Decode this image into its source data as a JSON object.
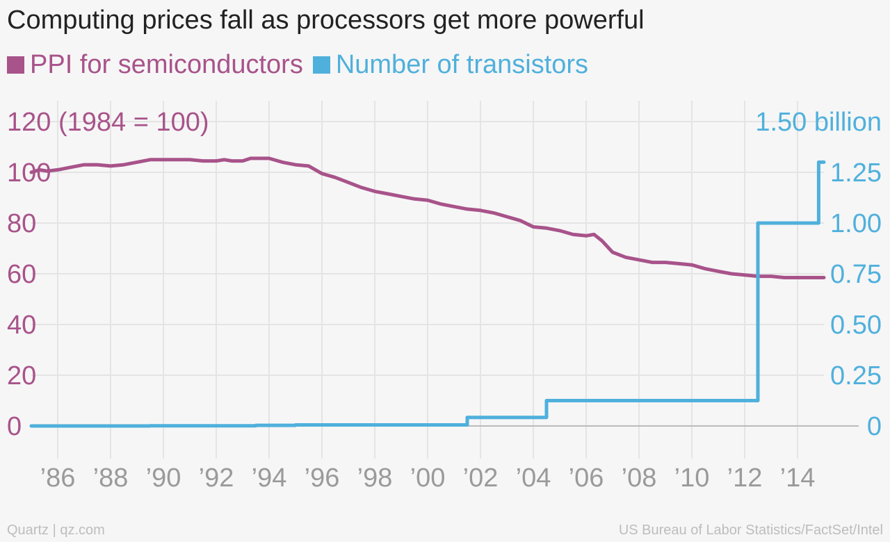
{
  "title": "Computing prices fall as processors get more powerful",
  "footer": {
    "left": "Quartz | qz.com",
    "right": "US Bureau of Labor Statistics/FactSet/Intel"
  },
  "colors": {
    "ppi": "#a8538a",
    "transistors": "#4fb0dc",
    "grid": "#e4e4e4",
    "zero_line": "#bbbbbb",
    "x_ticks": "#9a9a9a"
  },
  "chart_data": {
    "type": "line",
    "title": "Computing prices fall as processors get more powerful",
    "grid": true,
    "legend_placement": "top-left",
    "x_axis": {
      "domain": [
        1985.0,
        2015.0
      ],
      "ticks": [
        1986,
        1988,
        1990,
        1992,
        1994,
        1996,
        1998,
        2000,
        2002,
        2004,
        2006,
        2008,
        2010,
        2012,
        2014
      ],
      "tick_labels": [
        "’86",
        "’88",
        "’90",
        "’92",
        "’94",
        "’96",
        "’98",
        "’00",
        "’02",
        "’04",
        "’06",
        "’08",
        "’10",
        "’12",
        "’14"
      ]
    },
    "y_left": {
      "label": "(1984 = 100)",
      "ylim": [
        0,
        120
      ],
      "ticks": [
        0,
        20,
        40,
        60,
        80,
        100,
        120
      ],
      "tick_labels": [
        "0",
        "20",
        "40",
        "60",
        "80",
        "100",
        "120 (1984 = 100)"
      ]
    },
    "y_right": {
      "ylim": [
        0,
        1.5
      ],
      "ticks": [
        0,
        0.25,
        0.5,
        0.75,
        1.0,
        1.25,
        1.5
      ],
      "tick_labels": [
        "0",
        "0.25",
        "0.50",
        "0.75",
        "1.00",
        "1.25",
        "1.50 billion"
      ]
    },
    "series": [
      {
        "name": "PPI for semiconductors",
        "axis": "left",
        "x": [
          1985.0,
          1985.3,
          1985.6,
          1986.0,
          1986.5,
          1987.0,
          1987.5,
          1988.0,
          1988.5,
          1989.0,
          1989.5,
          1990.0,
          1990.5,
          1991.0,
          1991.5,
          1992.0,
          1992.3,
          1992.6,
          1993.0,
          1993.3,
          1993.6,
          1994.0,
          1994.5,
          1995.0,
          1995.5,
          1996.0,
          1996.5,
          1997.0,
          1997.5,
          1998.0,
          1998.5,
          1999.0,
          1999.5,
          2000.0,
          2000.5,
          2001.0,
          2001.5,
          2002.0,
          2002.5,
          2003.0,
          2003.5,
          2004.0,
          2004.5,
          2005.0,
          2005.5,
          2006.0,
          2006.3,
          2006.6,
          2007.0,
          2007.5,
          2008.0,
          2008.5,
          2009.0,
          2009.5,
          2010.0,
          2010.5,
          2011.0,
          2011.5,
          2012.0,
          2012.5,
          2013.0,
          2013.5,
          2014.0,
          2014.5,
          2015.0
        ],
        "values": [
          100,
          101,
          100.5,
          101,
          102,
          103,
          103,
          102.5,
          103,
          104,
          105,
          105,
          105,
          105,
          104.5,
          104.5,
          105,
          104.5,
          104.5,
          105.5,
          105.5,
          105.5,
          104,
          103,
          102.5,
          99.5,
          98,
          96,
          94,
          92.5,
          91.5,
          90.5,
          89.5,
          89,
          87.5,
          86.5,
          85.5,
          85,
          84,
          82.5,
          81,
          78.5,
          78,
          77,
          75.5,
          75,
          75.5,
          73,
          68.5,
          66.5,
          65.5,
          64.5,
          64.5,
          64,
          63.5,
          62,
          61,
          60,
          59.5,
          59,
          59,
          58.5,
          58.5,
          58.5,
          58.5
        ]
      },
      {
        "name": "Number of transistors",
        "axis": "right",
        "step": true,
        "x": [
          1985.0,
          1989.5,
          1993.5,
          1995.0,
          2001.5,
          2004.5,
          2012.5,
          2014.8,
          2015.0
        ],
        "values": [
          0,
          0.001,
          0.003,
          0.005,
          0.042,
          0.125,
          1.0,
          1.3,
          1.3
        ]
      }
    ]
  }
}
